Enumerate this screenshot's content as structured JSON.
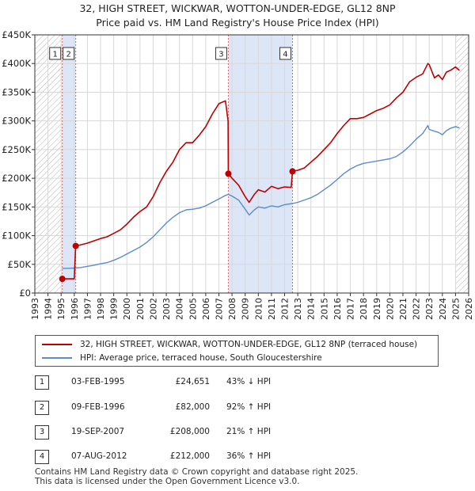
{
  "title_line1": "32, HIGH STREET, WICKWAR, WOTTON-UNDER-EDGE, GL12 8NP",
  "title_line2": "Price paid vs. HM Land Registry's House Price Index (HPI)",
  "colors": {
    "price": "#c00000",
    "hpi": "#5b8ccc",
    "shade": "#dde6f7",
    "grid": "#d8d8d8",
    "vline": "#e06666"
  },
  "chart_data": {
    "type": "line",
    "xlim": [
      1993,
      2026
    ],
    "ylim": [
      0,
      450000
    ],
    "yticks": [
      0,
      50000,
      100000,
      150000,
      200000,
      250000,
      300000,
      350000,
      400000,
      450000
    ],
    "ytick_labels": [
      "£0",
      "£50K",
      "£100K",
      "£150K",
      "£200K",
      "£250K",
      "£300K",
      "£350K",
      "£400K",
      "£450K"
    ],
    "xticks": [
      1993,
      1994,
      1995,
      1996,
      1997,
      1998,
      1999,
      2000,
      2001,
      2002,
      2003,
      2004,
      2005,
      2006,
      2007,
      2008,
      2009,
      2010,
      2011,
      2012,
      2013,
      2014,
      2015,
      2016,
      2017,
      2018,
      2019,
      2020,
      2021,
      2022,
      2023,
      2024,
      2025,
      2026
    ],
    "xtick_labels": [
      "1993",
      "1994",
      "1995",
      "1996",
      "1997",
      "1998",
      "1999",
      "2000",
      "2001",
      "2002",
      "2003",
      "2004",
      "2005",
      "2006",
      "2007",
      "2008",
      "2009",
      "2010",
      "2011",
      "2012",
      "2013",
      "2014",
      "2015",
      "2016",
      "2017",
      "2018",
      "2019",
      "2020",
      "2021",
      "2022",
      "2023",
      "2024",
      "2025",
      "2026"
    ],
    "shaded_ranges": [
      [
        1995.09,
        1996.11
      ],
      [
        2007.72,
        2012.6
      ]
    ],
    "hatched_ranges": [
      [
        1993,
        1995.09
      ],
      [
        2025.0,
        2026
      ]
    ],
    "series": [
      {
        "name": "32, HIGH STREET, WICKWAR, WOTTON-UNDER-EDGE, GL12 8NP (terraced house)",
        "key": "price",
        "x": [
          1995.09,
          1995.5,
          1996.0,
          1996.11,
          1996.5,
          1997.0,
          1997.5,
          1998.0,
          1998.5,
          1999.0,
          1999.5,
          2000.0,
          2000.5,
          2001.0,
          2001.5,
          2002.0,
          2002.5,
          2003.0,
          2003.5,
          2004.0,
          2004.5,
          2005.0,
          2005.5,
          2006.0,
          2006.5,
          2007.0,
          2007.5,
          2007.7,
          2007.72,
          2008.0,
          2008.5,
          2009.0,
          2009.3,
          2009.7,
          2010.0,
          2010.5,
          2011.0,
          2011.5,
          2012.0,
          2012.5,
          2012.6,
          2013.0,
          2013.5,
          2014.0,
          2014.5,
          2015.0,
          2015.5,
          2016.0,
          2016.5,
          2017.0,
          2017.5,
          2018.0,
          2018.5,
          2019.0,
          2019.5,
          2020.0,
          2020.5,
          2021.0,
          2021.5,
          2022.0,
          2022.5,
          2022.9,
          2023.0,
          2023.4,
          2023.7,
          2024.0,
          2024.3,
          2024.6,
          2025.0,
          2025.3
        ],
        "values": [
          24651,
          24651,
          24651,
          82000,
          84000,
          87000,
          91000,
          95000,
          98000,
          104000,
          110000,
          120000,
          132000,
          142000,
          150000,
          168000,
          192000,
          212000,
          228000,
          250000,
          262000,
          262000,
          275000,
          290000,
          312000,
          330000,
          335000,
          300000,
          208000,
          200000,
          188000,
          168000,
          158000,
          172000,
          180000,
          176000,
          186000,
          182000,
          185000,
          184000,
          212000,
          214000,
          218000,
          228000,
          238000,
          250000,
          262000,
          278000,
          292000,
          304000,
          304000,
          306000,
          312000,
          318000,
          322000,
          328000,
          340000,
          350000,
          368000,
          376000,
          382000,
          400000,
          398000,
          375000,
          380000,
          372000,
          385000,
          388000,
          394000,
          388000
        ]
      },
      {
        "name": "HPI: Average price, terraced house, South Gloucestershire",
        "key": "hpi",
        "x": [
          1995.09,
          1995.5,
          1996.0,
          1996.5,
          1997.0,
          1997.5,
          1998.0,
          1998.5,
          1999.0,
          1999.5,
          2000.0,
          2000.5,
          2001.0,
          2001.5,
          2002.0,
          2002.5,
          2003.0,
          2003.5,
          2004.0,
          2004.5,
          2005.0,
          2005.5,
          2006.0,
          2006.5,
          2007.0,
          2007.5,
          2007.72,
          2008.0,
          2008.5,
          2009.0,
          2009.3,
          2009.7,
          2010.0,
          2010.5,
          2011.0,
          2011.5,
          2012.0,
          2012.6,
          2013.0,
          2013.5,
          2014.0,
          2014.5,
          2015.0,
          2015.5,
          2016.0,
          2016.5,
          2017.0,
          2017.5,
          2018.0,
          2018.5,
          2019.0,
          2019.5,
          2020.0,
          2020.5,
          2021.0,
          2021.5,
          2022.0,
          2022.5,
          2022.9,
          2023.0,
          2023.4,
          2023.7,
          2024.0,
          2024.3,
          2024.6,
          2025.0,
          2025.3
        ],
        "values": [
          43000,
          43000,
          43500,
          44500,
          46500,
          48500,
          51000,
          53000,
          57000,
          62000,
          68000,
          74000,
          80000,
          88000,
          98000,
          110000,
          122000,
          132000,
          140000,
          145000,
          146000,
          148000,
          152000,
          158000,
          164000,
          170000,
          172000,
          169000,
          162000,
          146000,
          136000,
          145000,
          150000,
          148000,
          152000,
          150000,
          154000,
          156000,
          158000,
          162000,
          166000,
          172000,
          180000,
          188000,
          198000,
          208000,
          216000,
          222000,
          226000,
          228000,
          230000,
          232000,
          234000,
          238000,
          246000,
          256000,
          268000,
          278000,
          292000,
          285000,
          282000,
          280000,
          276000,
          283000,
          287000,
          290000,
          288000
        ]
      }
    ],
    "sales": [
      {
        "id": "1",
        "x": 1995.09,
        "value": 24651
      },
      {
        "id": "2",
        "x": 1996.11,
        "value": 82000
      },
      {
        "id": "3",
        "x": 2007.72,
        "value": 208000
      },
      {
        "id": "4",
        "x": 2012.6,
        "value": 212000
      }
    ],
    "legend": [
      "32, HIGH STREET, WICKWAR, WOTTON-UNDER-EDGE, GL12 8NP (terraced house)",
      "HPI: Average price, terraced house, South Gloucestershire"
    ],
    "legend_position": "below"
  },
  "transactions": [
    {
      "id": "1",
      "date": "03-FEB-1995",
      "price": "£24,651",
      "hpi": "43% ↓ HPI"
    },
    {
      "id": "2",
      "date": "09-FEB-1996",
      "price": "£82,000",
      "hpi": "92% ↑ HPI"
    },
    {
      "id": "3",
      "date": "19-SEP-2007",
      "price": "£208,000",
      "hpi": "21% ↑ HPI"
    },
    {
      "id": "4",
      "date": "07-AUG-2012",
      "price": "£212,000",
      "hpi": "36% ↑ HPI"
    }
  ],
  "footer_line1": "Contains HM Land Registry data © Crown copyright and database right 2025.",
  "footer_line2": "This data is licensed under the Open Government Licence v3.0."
}
